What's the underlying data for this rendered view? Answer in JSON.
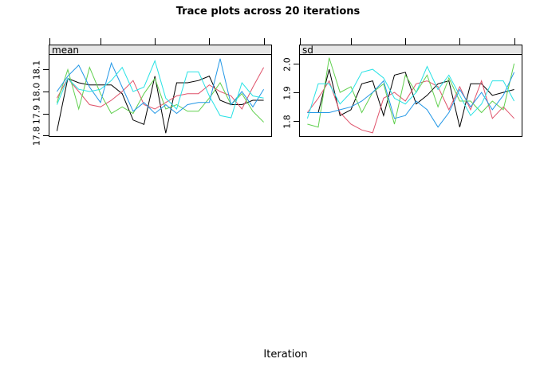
{
  "page": {
    "title": "Trace plots across 20 iterations",
    "xlabel": "Iteration",
    "background": "#ffffff",
    "text_color": "#000000",
    "strip_background": "#e6e6e6"
  },
  "chart_data": [
    {
      "type": "line",
      "panel": "mean",
      "title": "mean",
      "x": [
        1,
        2,
        3,
        4,
        5,
        6,
        7,
        8,
        9,
        10,
        11,
        12,
        13,
        14,
        15,
        16,
        17,
        18,
        19,
        20
      ],
      "xlim": [
        0.24,
        20.76
      ],
      "ylim": [
        17.793,
        18.167
      ],
      "xticks": [
        0.3,
        5,
        10,
        15,
        20
      ],
      "yticks": [
        {
          "value": 17.8,
          "label": "17.8"
        },
        {
          "value": 17.9,
          "label": "17.9"
        },
        {
          "value": 18.0,
          "label": "18.0"
        },
        {
          "value": 18.1,
          "label": "18.1"
        }
      ],
      "grid": false,
      "legend": "none",
      "series": [
        {
          "name": "black",
          "color": "#000000",
          "values": [
            17.82,
            18.06,
            18.04,
            18.03,
            18.03,
            18.03,
            17.99,
            17.87,
            17.85,
            18.07,
            17.81,
            18.04,
            18.04,
            18.05,
            18.07,
            17.96,
            17.94,
            17.94,
            17.96,
            17.96
          ]
        },
        {
          "name": "red",
          "color": "#DF536B",
          "values": [
            17.97,
            18.06,
            18.0,
            17.94,
            17.93,
            17.96,
            18.0,
            18.05,
            17.94,
            17.92,
            17.95,
            17.98,
            17.99,
            17.99,
            18.03,
            18.0,
            17.98,
            17.92,
            18.02,
            18.11
          ]
        },
        {
          "name": "green",
          "color": "#61D04F",
          "values": [
            17.95,
            18.1,
            17.92,
            18.11,
            17.99,
            17.9,
            17.93,
            17.9,
            17.99,
            18.06,
            17.92,
            17.94,
            17.91,
            17.91,
            17.97,
            18.04,
            17.94,
            17.99,
            17.91,
            17.86
          ]
        },
        {
          "name": "blue",
          "color": "#2297E6",
          "values": [
            18.0,
            18.07,
            18.12,
            18.02,
            17.95,
            18.13,
            18.02,
            17.91,
            17.95,
            17.9,
            17.94,
            17.9,
            17.94,
            17.95,
            17.95,
            18.15,
            17.94,
            18.0,
            17.93,
            18.01
          ]
        },
        {
          "name": "cyan",
          "color": "#28E2E5",
          "values": [
            17.94,
            18.06,
            18.01,
            18.0,
            18.01,
            18.05,
            18.11,
            18.0,
            18.02,
            18.14,
            17.97,
            17.92,
            18.09,
            18.09,
            17.98,
            17.89,
            17.88,
            18.04,
            17.98,
            17.97
          ]
        }
      ]
    },
    {
      "type": "line",
      "panel": "sd",
      "title": "sd",
      "x": [
        1,
        2,
        3,
        4,
        5,
        6,
        7,
        8,
        9,
        10,
        11,
        12,
        13,
        14,
        15,
        16,
        17,
        18,
        19,
        20
      ],
      "xlim": [
        0.24,
        20.76
      ],
      "ylim": [
        1.746,
        2.03
      ],
      "xticks": [
        0.3,
        5,
        10,
        15,
        20
      ],
      "yticks": [
        {
          "value": 1.8,
          "label": "1.8"
        },
        {
          "value": 1.9,
          "label": "1.9"
        },
        {
          "value": 2.0,
          "label": "2.0"
        }
      ],
      "grid": false,
      "legend": "none",
      "series": [
        {
          "name": "black",
          "color": "#000000",
          "values": [
            1.83,
            1.83,
            1.98,
            1.82,
            1.84,
            1.93,
            1.94,
            1.82,
            1.96,
            1.97,
            1.86,
            1.89,
            1.93,
            1.94,
            1.78,
            1.93,
            1.93,
            1.89,
            1.9,
            1.91
          ]
        },
        {
          "name": "red",
          "color": "#DF536B",
          "values": [
            1.83,
            1.88,
            1.94,
            1.83,
            1.79,
            1.77,
            1.76,
            1.88,
            1.9,
            1.87,
            1.93,
            1.94,
            1.92,
            1.84,
            1.92,
            1.84,
            1.94,
            1.81,
            1.85,
            1.81
          ]
        },
        {
          "name": "green",
          "color": "#61D04F",
          "values": [
            1.79,
            1.78,
            2.02,
            1.9,
            1.92,
            1.83,
            1.9,
            1.93,
            1.79,
            1.96,
            1.9,
            1.96,
            1.85,
            1.95,
            1.87,
            1.87,
            1.83,
            1.87,
            1.84,
            2.0
          ]
        },
        {
          "name": "blue",
          "color": "#2297E6",
          "values": [
            1.83,
            1.83,
            1.83,
            1.84,
            1.85,
            1.87,
            1.9,
            1.94,
            1.81,
            1.82,
            1.87,
            1.84,
            1.78,
            1.83,
            1.91,
            1.85,
            1.9,
            1.84,
            1.89,
            1.97
          ]
        },
        {
          "name": "cyan",
          "color": "#28E2E5",
          "values": [
            1.81,
            1.93,
            1.93,
            1.86,
            1.9,
            1.97,
            1.98,
            1.95,
            1.88,
            1.86,
            1.9,
            1.99,
            1.91,
            1.96,
            1.89,
            1.82,
            1.86,
            1.94,
            1.94,
            1.87
          ]
        }
      ]
    }
  ]
}
